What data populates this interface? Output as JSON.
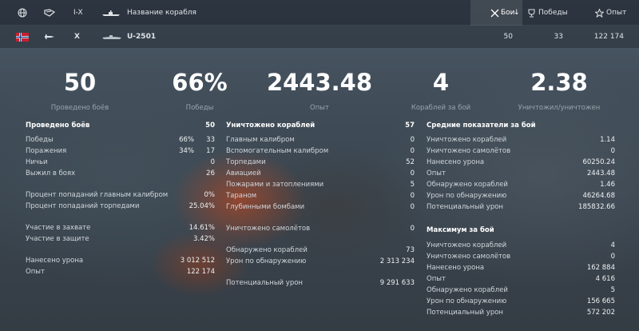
{
  "header": {
    "tier_label": "I-X",
    "ship_name_label": "Название корабля",
    "battles_label": "Бои",
    "wins_label": "Победы",
    "exp_label": "Опыт"
  },
  "ship_row": {
    "tier": "X",
    "name": "U-2501",
    "battles": "50",
    "wins": "33",
    "exp": "122 174"
  },
  "summary": [
    {
      "value": "50",
      "label": "Проведено боёв"
    },
    {
      "value": "66%",
      "label": "Победы"
    },
    {
      "value": "2443.48",
      "label": "Опыт"
    },
    {
      "value": "4",
      "label": "Кораблей за бой"
    },
    {
      "value": "2.38",
      "label": "Уничтожил/уничтожен"
    }
  ],
  "col1": {
    "title": "Проведено боёв",
    "title_value": "50",
    "rows": [
      {
        "label": "Победы",
        "pct": "66%",
        "value": "33"
      },
      {
        "label": "Поражения",
        "pct": "34%",
        "value": "17"
      },
      {
        "label": "Ничьи",
        "value": "0"
      },
      {
        "label": "Выжил в боях",
        "value": "26"
      },
      {
        "label": "Процент попаданий главным калибром",
        "value": "0%"
      },
      {
        "label": "Процент попаданий торпедами",
        "value": "25.04%"
      },
      {
        "label": "Участие в захвате",
        "value": "14.61%"
      },
      {
        "label": "Участие в защите",
        "value": "3.42%"
      },
      {
        "label": "Нанесено урона",
        "value": "3 012 512"
      },
      {
        "label": "Опыт",
        "value": "122 174"
      }
    ]
  },
  "col2": {
    "title": "Уничтожено кораблей",
    "title_value": "57",
    "rows": [
      {
        "label": "Главным калибром",
        "value": "0"
      },
      {
        "label": "Вспомогательным калибром",
        "value": "0"
      },
      {
        "label": "Торпедами",
        "value": "52"
      },
      {
        "label": "Авиацией",
        "value": "0"
      },
      {
        "label": "Пожарами и затоплениями",
        "value": "5"
      },
      {
        "label": "Тараном",
        "value": "0"
      },
      {
        "label": "Глубинными бомбами",
        "value": "0"
      },
      {
        "label": "Уничтожено самолётов",
        "value": "0"
      },
      {
        "label": "Обнаружено кораблей",
        "value": "73"
      },
      {
        "label": "Урон по обнаружению",
        "value": "2 313 234"
      },
      {
        "label": "Потенциальный урон",
        "value": "9 291 633"
      }
    ]
  },
  "col3": {
    "title": "Средние показатели за бой",
    "rows": [
      {
        "label": "Уничтожено кораблей",
        "value": "1.14"
      },
      {
        "label": "Уничтожено самолётов",
        "value": "0"
      },
      {
        "label": "Нанесено урона",
        "value": "60250.24"
      },
      {
        "label": "Опыт",
        "value": "2443.48"
      },
      {
        "label": "Обнаружено кораблей",
        "value": "1.46"
      },
      {
        "label": "Урон по обнаружению",
        "value": "46264.68"
      },
      {
        "label": "Потенциальный урон",
        "value": "185832.66"
      }
    ],
    "max_title": "Максимум за бой",
    "max_rows": [
      {
        "label": "Уничтожено кораблей",
        "value": "4"
      },
      {
        "label": "Уничтожено самолётов",
        "value": "0"
      },
      {
        "label": "Нанесено урона",
        "value": "162 884"
      },
      {
        "label": "Опыт",
        "value": "4 616"
      },
      {
        "label": "Обнаружено кораблей",
        "value": "5"
      },
      {
        "label": "Урон по обнаружению",
        "value": "156 665"
      },
      {
        "label": "Потенциальный урон",
        "value": "572 202"
      }
    ]
  }
}
